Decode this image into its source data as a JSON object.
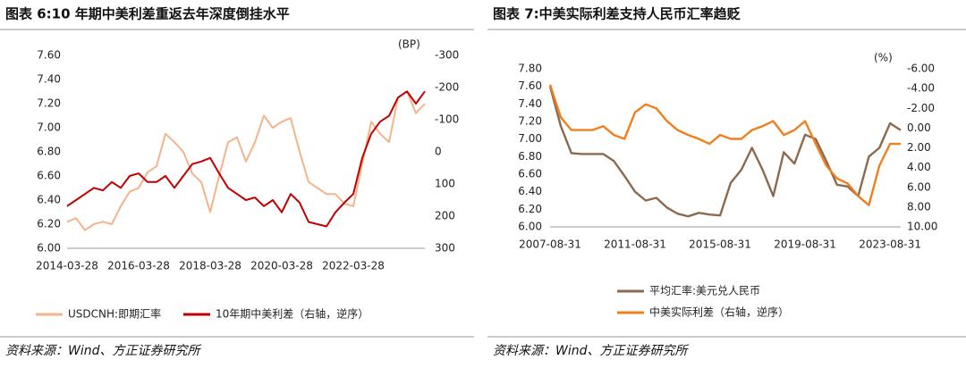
{
  "chart_data": [
    {
      "type": "line",
      "title": "图表 6:10 年期中美利差重返去年深度倒挂水平",
      "annotation": "(BP)",
      "source": "资料来源：Wind、方正证券研究所",
      "categories": [
        "2014-03-28",
        null,
        null,
        null,
        null,
        null,
        null,
        null,
        "2016-03-28",
        null,
        null,
        null,
        null,
        null,
        null,
        null,
        "2018-03-28",
        null,
        null,
        null,
        null,
        null,
        null,
        null,
        "2020-03-28",
        null,
        null,
        null,
        null,
        null,
        null,
        null,
        "2022-03-28",
        null,
        null,
        null,
        null,
        null,
        null,
        null,
        null
      ],
      "ylim": [
        6.0,
        7.6
      ],
      "yticks": [
        {
          "value": 6.0,
          "label": "6.00"
        },
        {
          "value": 6.2,
          "label": "6.20"
        },
        {
          "value": 6.4,
          "label": "6.40"
        },
        {
          "value": 6.6,
          "label": "6.60"
        },
        {
          "value": 6.8,
          "label": "6.80"
        },
        {
          "value": 7.0,
          "label": "7.00"
        },
        {
          "value": 7.2,
          "label": "7.20"
        },
        {
          "value": 7.4,
          "label": "7.40"
        },
        {
          "value": 7.6,
          "label": "7.60"
        }
      ],
      "y2lim": [
        300,
        -300
      ],
      "y2ticks": [
        300,
        200,
        100,
        0,
        -100,
        -200,
        -300
      ],
      "legend": "bottom-row",
      "series": [
        {
          "name": "USDCNH:即期汇率",
          "color": "#f3b48c",
          "axis": "y",
          "values": [
            6.22,
            6.25,
            6.15,
            6.2,
            6.22,
            6.2,
            6.35,
            6.47,
            6.5,
            6.63,
            6.68,
            6.95,
            6.88,
            6.8,
            6.62,
            6.55,
            6.3,
            6.6,
            6.88,
            6.92,
            6.72,
            6.88,
            7.1,
            7.0,
            7.05,
            7.08,
            6.8,
            6.55,
            6.5,
            6.45,
            6.45,
            6.37,
            6.35,
            6.7,
            7.05,
            6.95,
            6.88,
            7.25,
            7.3,
            7.12,
            7.2
          ]
        },
        {
          "name": "10年期中美利差（右轴，逆序）",
          "color": "#c00000",
          "axis": "y2",
          "values": [
            169,
            150,
            131,
            112,
            120,
            94,
            112,
            75,
            67,
            94,
            94,
            75,
            112,
            75,
            38,
            30,
            19,
            67,
            112,
            131,
            150,
            142,
            169,
            150,
            188,
            131,
            158,
            218,
            225,
            232,
            188,
            158,
            131,
            19,
            -56,
            -94,
            -112,
            -169,
            -188,
            -150,
            -188
          ]
        }
      ]
    },
    {
      "type": "line",
      "title": "图表 7:中美实际利差支持人民币汇率趋贬",
      "annotation": "(%)",
      "source": "资料来源：Wind、方正证券研究所",
      "categories": [
        "2007-08-31",
        null,
        null,
        null,
        null,
        null,
        null,
        null,
        "2011-08-31",
        null,
        null,
        null,
        null,
        null,
        null,
        null,
        "2015-08-31",
        null,
        null,
        null,
        null,
        null,
        null,
        null,
        "2019-08-31",
        null,
        null,
        null,
        null,
        null,
        null,
        null,
        "2023-08-31",
        null
      ],
      "ylim": [
        6.0,
        7.8
      ],
      "yticks": [
        {
          "value": 6.0,
          "label": "6.00"
        },
        {
          "value": 6.2,
          "label": "6.20"
        },
        {
          "value": 6.4,
          "label": "6.40"
        },
        {
          "value": 6.6,
          "label": "6.60"
        },
        {
          "value": 6.8,
          "label": "6.80"
        },
        {
          "value": 7.0,
          "label": "7.00"
        },
        {
          "value": 7.2,
          "label": "7.20"
        },
        {
          "value": 7.4,
          "label": "7.40"
        },
        {
          "value": 7.6,
          "label": "7.60"
        },
        {
          "value": 7.8,
          "label": "7.80"
        }
      ],
      "y2lim": [
        10,
        -6
      ],
      "y2ticks": [
        {
          "value": 10,
          "label": "10.00"
        },
        {
          "value": 8,
          "label": "8.00"
        },
        {
          "value": 6,
          "label": "6.00"
        },
        {
          "value": 4,
          "label": "4.00"
        },
        {
          "value": 2,
          "label": "2.00"
        },
        {
          "value": 0,
          "label": "0.00"
        },
        {
          "value": -2,
          "label": "-2.00"
        },
        {
          "value": -4,
          "label": "-4.00"
        },
        {
          "value": -6,
          "label": "-6.00"
        }
      ],
      "legend": "bottom-column",
      "series": [
        {
          "name": "平均汇率:美元兑人民币",
          "color": "#8b6a4f",
          "axis": "y",
          "values": [
            7.6,
            7.15,
            6.84,
            6.83,
            6.83,
            6.83,
            6.75,
            6.58,
            6.4,
            6.3,
            6.33,
            6.22,
            6.15,
            6.12,
            6.16,
            6.14,
            6.13,
            6.5,
            6.65,
            6.9,
            6.65,
            6.35,
            6.85,
            6.72,
            7.05,
            7.0,
            6.75,
            6.48,
            6.46,
            6.35,
            6.8,
            6.9,
            7.18,
            7.1
          ]
        },
        {
          "name": "中美实际利差（右轴，逆序）",
          "color": "#f0801e",
          "axis": "y2",
          "values": [
            -4.4,
            -1.1,
            0.2,
            0.2,
            0.2,
            -0.2,
            0.7,
            1.1,
            -1.6,
            -2.4,
            -2.0,
            -0.7,
            0.2,
            0.7,
            1.1,
            1.6,
            0.7,
            1.1,
            1.1,
            0.2,
            -0.2,
            -0.7,
            0.7,
            0.2,
            -0.7,
            1.6,
            3.8,
            5.1,
            5.6,
            6.9,
            7.8,
            3.8,
            1.6,
            1.6
          ]
        }
      ]
    }
  ]
}
